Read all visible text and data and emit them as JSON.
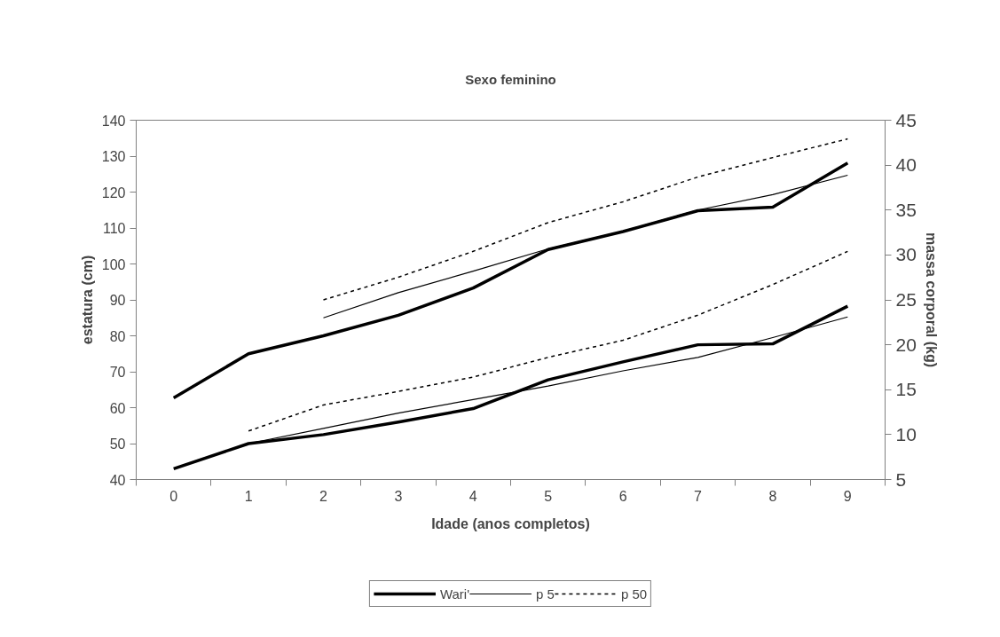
{
  "chart_data": {
    "type": "line",
    "title": "Sexo feminino",
    "xlabel": "Idade (anos completos)",
    "ylabel": "estatura (cm)",
    "y2label": "massa corporal (kg)",
    "categories": [
      "0",
      "1",
      "2",
      "3",
      "4",
      "5",
      "6",
      "7",
      "8",
      "9"
    ],
    "series": [
      {
        "name": "Wari'",
        "color": "#000000",
        "line_style": "solid",
        "values": [
          62.7,
          75,
          80,
          85.7,
          93.3,
          104,
          109,
          114.8,
          115.8,
          128.1
        ]
      },
      {
        "name": "p 5",
        "color": "#000000",
        "line_style": "solid",
        "values": [
          null,
          null,
          85,
          92,
          98,
          104.2,
          109.1,
          115,
          119.3,
          124.7
        ]
      },
      {
        "name": "p 50",
        "color": "#000000",
        "line_style": "dashed",
        "values": [
          null,
          null,
          90,
          96.3,
          103.5,
          111.5,
          117.3,
          124.2,
          129.6,
          134.8
        ]
      },
      {
        "color": "#000000",
        "line_style": "solid",
        "axis": "y2",
        "values": [
          6.2,
          9.0,
          10.0,
          11.4,
          12.9,
          16.1,
          18.1,
          20.0,
          20.1,
          24.3
        ]
      },
      {
        "color": "#000000",
        "line_style": "solid",
        "axis": "y2",
        "values": [
          null,
          9.0,
          10.7,
          12.4,
          13.9,
          15.4,
          17.1,
          18.6,
          20.8,
          23.1
        ]
      },
      {
        "color": "#000000",
        "line_style": "dashed",
        "axis": "y2",
        "values": [
          null,
          10.4,
          13.3,
          14.8,
          16.4,
          18.6,
          20.5,
          23.3,
          26.7,
          30.4
        ]
      }
    ],
    "ylim": [
      40,
      140
    ],
    "yticks": [
      40,
      50,
      60,
      70,
      80,
      90,
      100,
      110,
      120,
      130,
      140
    ],
    "y2lim": [
      5,
      45
    ],
    "y2ticks": [
      5,
      10,
      15,
      20,
      25,
      30,
      35,
      40,
      45
    ],
    "grid": false,
    "legend": "bottom",
    "marker": "none"
  }
}
